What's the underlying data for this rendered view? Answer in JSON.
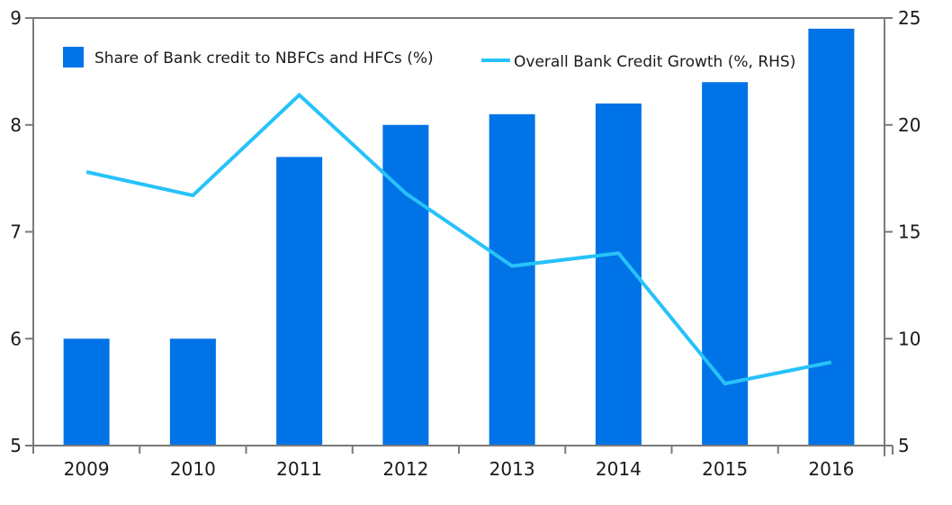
{
  "chart_data": {
    "type": "bar+line",
    "title": "",
    "categories": [
      "2009",
      "2010",
      "2011",
      "2012",
      "2013",
      "2014",
      "2015",
      "2016"
    ],
    "series": [
      {
        "name": "Share of Bank credit to NBFCs and HFCs (%)",
        "type": "bar",
        "axis": "left",
        "color": "#0073E6",
        "values": [
          6.0,
          6.0,
          7.7,
          8.0,
          8.1,
          8.2,
          8.4,
          8.9
        ]
      },
      {
        "name": "Overall Bank Credit Growth (%, RHS)",
        "type": "line",
        "axis": "right",
        "color": "#27C2F9",
        "values": [
          17.8,
          16.7,
          21.4,
          16.8,
          13.4,
          14.0,
          7.9,
          8.9
        ]
      }
    ],
    "y_left": {
      "range": [
        5,
        9
      ],
      "ticks": [
        "5",
        "6",
        "7",
        "8",
        "9"
      ]
    },
    "y_right": {
      "range": [
        5,
        25
      ],
      "ticks": [
        "5",
        "10",
        "15",
        "20",
        "25"
      ]
    },
    "xlabel": "",
    "ylabel": "",
    "grid": false,
    "legend_placement": "top"
  }
}
